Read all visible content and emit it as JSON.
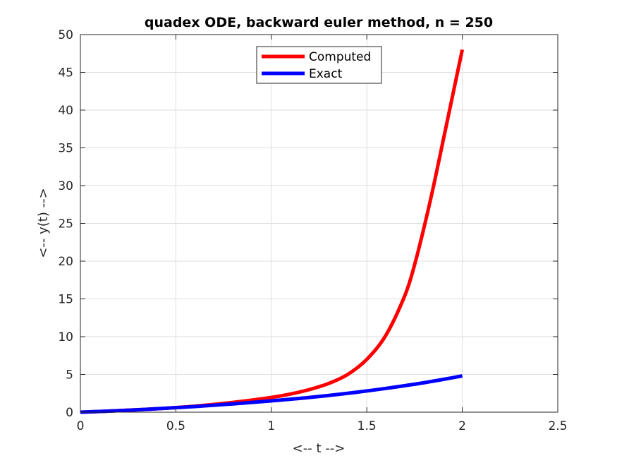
{
  "chart_data": {
    "type": "line",
    "title": "quadex ODE, backward euler method, n = 250",
    "xlabel": "<-- t -->",
    "ylabel": "<-- y(t) -->",
    "xlim": [
      0,
      2.5
    ],
    "ylim": [
      0,
      50
    ],
    "xticks": [
      0,
      0.5,
      1,
      1.5,
      2,
      2.5
    ],
    "xtick_labels": [
      "0",
      "0.5",
      "1",
      "1.5",
      "2",
      "2.5"
    ],
    "yticks": [
      0,
      5,
      10,
      15,
      20,
      25,
      30,
      35,
      40,
      45,
      50
    ],
    "ytick_labels": [
      "0",
      "5",
      "10",
      "15",
      "20",
      "25",
      "30",
      "35",
      "40",
      "45",
      "50"
    ],
    "grid": true,
    "legend_position": "top-center",
    "series": [
      {
        "name": "Computed",
        "color": "#ff0000",
        "x": [
          0,
          0.2,
          0.4,
          0.6,
          0.8,
          1.0,
          1.1,
          1.2,
          1.3,
          1.4,
          1.5,
          1.6,
          1.7,
          1.75,
          1.8,
          1.85,
          1.9,
          1.95,
          2.0
        ],
        "y": [
          0,
          0.2,
          0.45,
          0.8,
          1.3,
          1.95,
          2.4,
          3.0,
          3.8,
          5.0,
          7.0,
          10.2,
          15.5,
          19.5,
          24.5,
          30.0,
          36.0,
          42.0,
          48.0
        ]
      },
      {
        "name": "Exact",
        "color": "#0000ff",
        "x": [
          0,
          0.2,
          0.4,
          0.6,
          0.8,
          1.0,
          1.2,
          1.4,
          1.6,
          1.8,
          2.0
        ],
        "y": [
          0,
          0.2,
          0.45,
          0.75,
          1.1,
          1.5,
          1.95,
          2.5,
          3.15,
          3.9,
          4.8
        ]
      }
    ]
  }
}
